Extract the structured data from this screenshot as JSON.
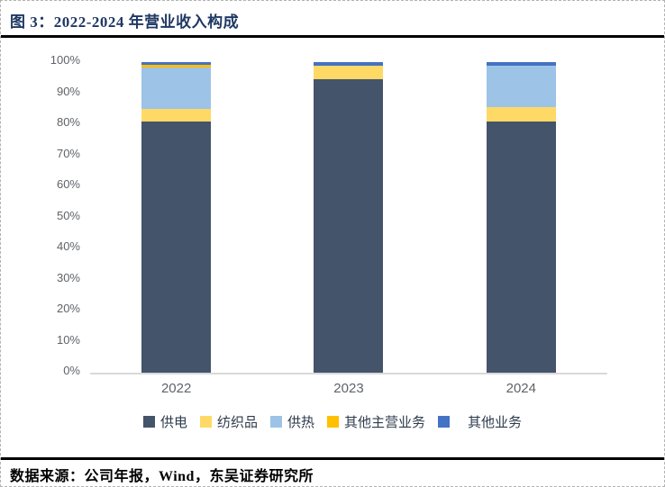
{
  "figure": {
    "title": "图 3：2022-2024 年营业收入构成",
    "source": "数据来源：公司年报，Wind，东吴证券研究所"
  },
  "chart_data": {
    "type": "bar",
    "stacked": true,
    "unit": "percent",
    "title": "2022-2024 年营业收入构成",
    "categories": [
      "2022",
      "2023",
      "2024"
    ],
    "series": [
      {
        "name": "供电",
        "color": "#44546A",
        "values": [
          81.0,
          94.4,
          81.0
        ]
      },
      {
        "name": "纺织品",
        "color": "#FFD966",
        "values": [
          4.0,
          4.4,
          4.5
        ]
      },
      {
        "name": "供热",
        "color": "#9DC3E6",
        "values": [
          13.4,
          0.0,
          13.3
        ]
      },
      {
        "name": "其他主营业务",
        "color": "#FFC000",
        "values": [
          0.6,
          0.0,
          0.0
        ]
      },
      {
        "name": "其他业务",
        "color": "#4472C4",
        "values": [
          1.0,
          1.2,
          1.2
        ]
      }
    ],
    "ylim": [
      0,
      100
    ],
    "yticks": [
      "0%",
      "10%",
      "20%",
      "30%",
      "40%",
      "50%",
      "60%",
      "70%",
      "80%",
      "90%",
      "100%"
    ],
    "grid": false,
    "legend_position": "bottom"
  }
}
